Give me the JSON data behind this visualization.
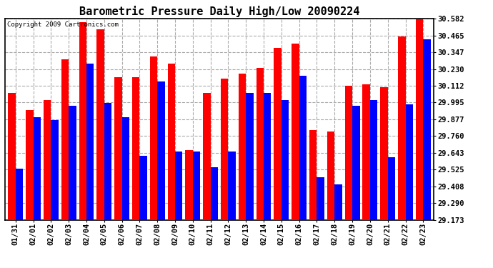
{
  "title": "Barometric Pressure Daily High/Low 20090224",
  "copyright": "Copyright 2009 Cartronics.com",
  "dates": [
    "01/31",
    "02/01",
    "02/02",
    "02/03",
    "02/04",
    "02/05",
    "02/06",
    "02/07",
    "02/08",
    "02/09",
    "02/10",
    "02/11",
    "02/12",
    "02/13",
    "02/14",
    "02/15",
    "02/16",
    "02/17",
    "02/18",
    "02/19",
    "02/20",
    "02/21",
    "02/22",
    "02/23"
  ],
  "highs": [
    30.06,
    29.94,
    30.01,
    30.3,
    30.56,
    30.51,
    30.17,
    30.17,
    30.32,
    30.27,
    29.66,
    30.06,
    30.16,
    30.2,
    30.24,
    30.38,
    30.41,
    29.8,
    29.79,
    30.11,
    30.12,
    30.1,
    30.46,
    30.58
  ],
  "lows": [
    29.53,
    29.89,
    29.87,
    29.97,
    30.27,
    29.99,
    29.89,
    29.62,
    30.14,
    29.65,
    29.65,
    29.54,
    29.65,
    30.06,
    30.06,
    30.01,
    30.18,
    29.47,
    29.42,
    29.97,
    30.01,
    29.61,
    29.98,
    30.44
  ],
  "high_color": "#ff0000",
  "low_color": "#0000ff",
  "bg_color": "#ffffff",
  "plot_bg_color": "#ffffff",
  "grid_color": "#aaaaaa",
  "ymin": 29.173,
  "ymax": 30.582,
  "yticks": [
    29.173,
    29.29,
    29.408,
    29.525,
    29.643,
    29.76,
    29.877,
    29.995,
    30.112,
    30.23,
    30.347,
    30.465,
    30.582
  ],
  "title_fontsize": 11,
  "tick_fontsize": 7.5,
  "bar_width": 0.42
}
